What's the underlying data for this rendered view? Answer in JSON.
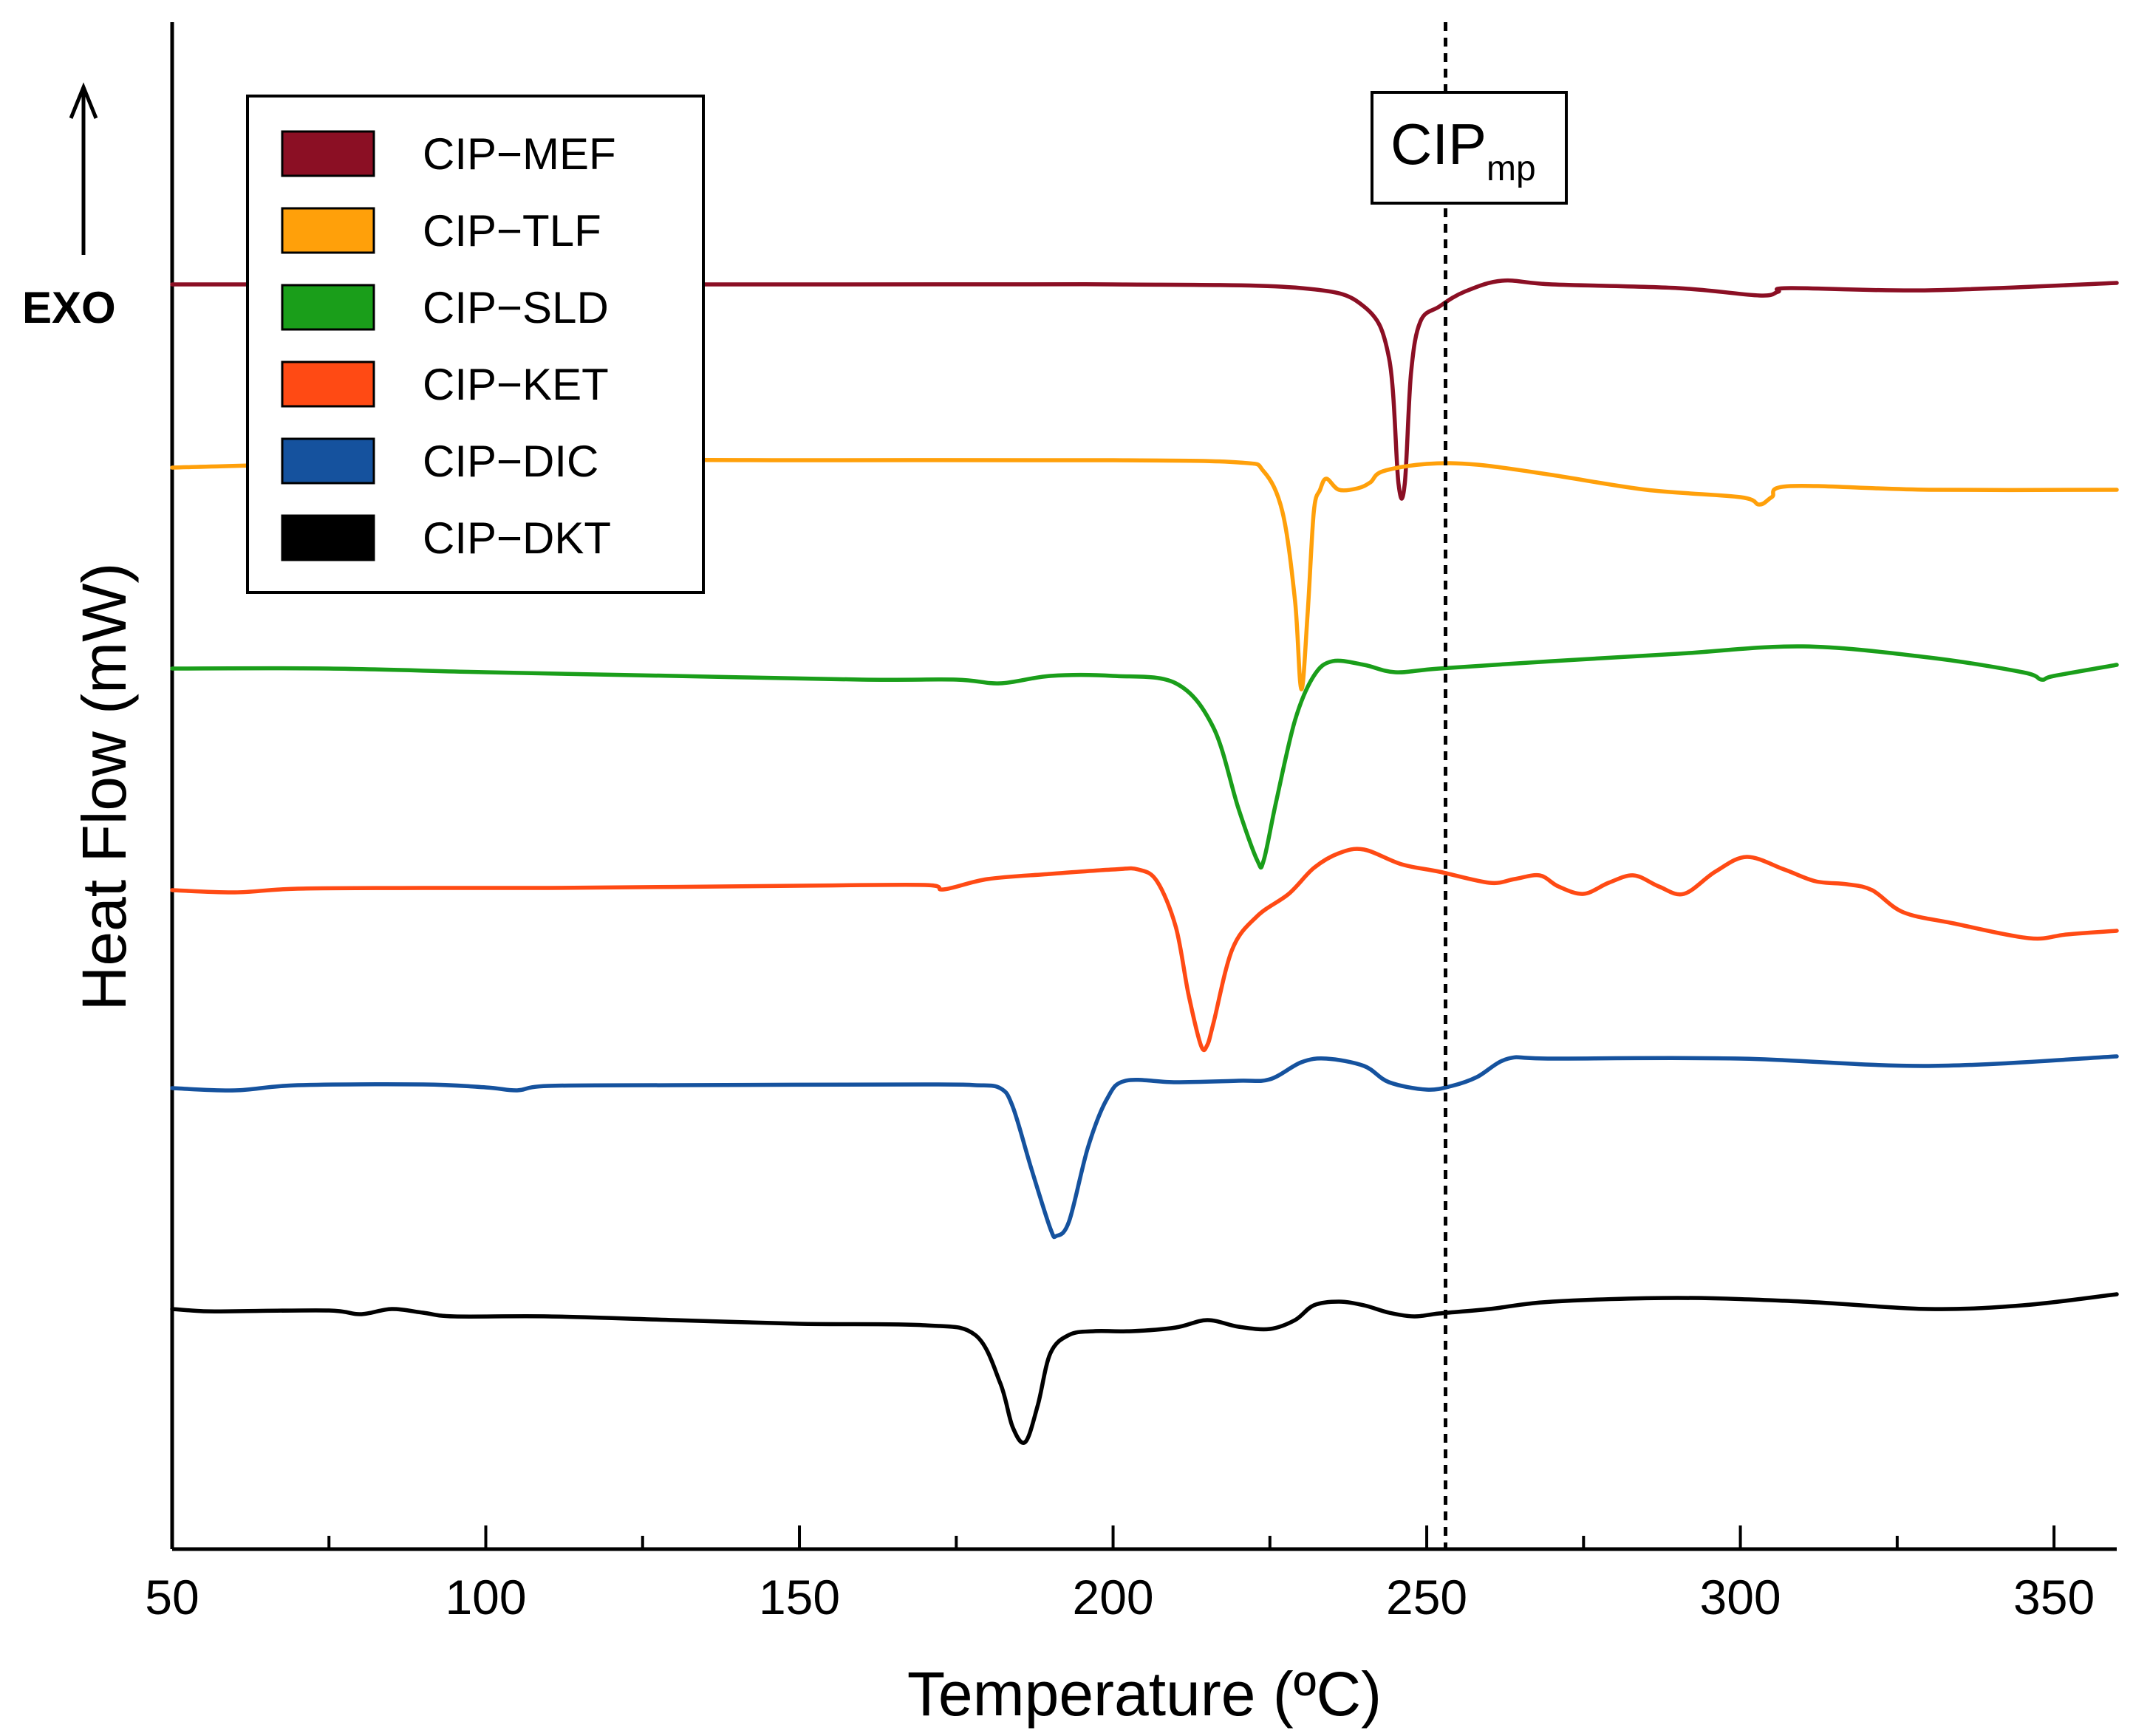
{
  "chart_data": {
    "type": "line",
    "title": "",
    "xlabel": "Temperature (ºC)",
    "ylabel": "Heat Flow (mW)",
    "xlim": [
      50,
      360
    ],
    "xticks": [
      50,
      100,
      150,
      200,
      250,
      300,
      350
    ],
    "exo_label": "EXO",
    "reference_line": {
      "x": 253,
      "label_main": "CIP",
      "label_sub": "mp"
    },
    "legend": {
      "position": "top-left"
    },
    "series": [
      {
        "name": "CIP−MEF",
        "color": "#8b0f24",
        "points": [
          [
            50,
            0
          ],
          [
            150,
            0
          ],
          [
            200,
            0
          ],
          [
            230,
            -0.5
          ],
          [
            240,
            -3
          ],
          [
            244,
            -10
          ],
          [
            245.5,
            -27
          ],
          [
            246.5,
            -27
          ],
          [
            247.5,
            -12
          ],
          [
            249,
            -5
          ],
          [
            252,
            -3
          ],
          [
            256,
            -1
          ],
          [
            262,
            0.5
          ],
          [
            270,
            0
          ],
          [
            290,
            -0.5
          ],
          [
            303,
            -1.5
          ],
          [
            306,
            -1
          ],
          [
            308,
            -0.5
          ],
          [
            330,
            -0.8
          ],
          [
            360,
            0.2
          ]
        ]
      },
      {
        "name": "CIP−TLF",
        "color": "#ffa00a",
        "points": [
          [
            50,
            0
          ],
          [
            100,
            1
          ],
          [
            150,
            1
          ],
          [
            200,
            1
          ],
          [
            220,
            0.7
          ],
          [
            224,
            -0.5
          ],
          [
            227,
            -6
          ],
          [
            229,
            -18
          ],
          [
            230,
            -30
          ],
          [
            231,
            -20
          ],
          [
            232,
            -6
          ],
          [
            233,
            -3
          ],
          [
            234,
            -1.5
          ],
          [
            236,
            -3
          ],
          [
            239,
            -2.8
          ],
          [
            241,
            -2
          ],
          [
            243,
            -0.5
          ],
          [
            250,
            0.5
          ],
          [
            258,
            0.4
          ],
          [
            270,
            -1
          ],
          [
            285,
            -3
          ],
          [
            300,
            -4
          ],
          [
            303,
            -5
          ],
          [
            305,
            -4
          ],
          [
            308,
            -2.5
          ],
          [
            330,
            -3
          ],
          [
            360,
            -3
          ]
        ]
      },
      {
        "name": "CIP−SLD",
        "color": "#1a9e1a",
        "points": [
          [
            50,
            0
          ],
          [
            75,
            0
          ],
          [
            100,
            -0.5
          ],
          [
            130,
            -1
          ],
          [
            160,
            -1.5
          ],
          [
            175,
            -1.5
          ],
          [
            182,
            -2
          ],
          [
            190,
            -1
          ],
          [
            200,
            -1
          ],
          [
            210,
            -2
          ],
          [
            216,
            -8
          ],
          [
            220,
            -19
          ],
          [
            223,
            -26
          ],
          [
            224,
            -26
          ],
          [
            226,
            -18
          ],
          [
            229,
            -7
          ],
          [
            232,
            -1
          ],
          [
            235,
            1
          ],
          [
            240,
            0.5
          ],
          [
            245,
            -0.5
          ],
          [
            252,
            0
          ],
          [
            270,
            1
          ],
          [
            290,
            2
          ],
          [
            310,
            3
          ],
          [
            330,
            1.5
          ],
          [
            345,
            -0.5
          ],
          [
            348,
            -1.5
          ],
          [
            350,
            -1
          ],
          [
            360,
            0.5
          ]
        ]
      },
      {
        "name": "CIP−KET",
        "color": "#ff4a14",
        "points": [
          [
            50,
            0
          ],
          [
            60,
            -0.3
          ],
          [
            70,
            0.2
          ],
          [
            90,
            0.3
          ],
          [
            110,
            0.3
          ],
          [
            150,
            0.6
          ],
          [
            170,
            0.7
          ],
          [
            173,
            0.1
          ],
          [
            180,
            1.5
          ],
          [
            190,
            2.2
          ],
          [
            200,
            2.8
          ],
          [
            204,
            2.8
          ],
          [
            207,
            1.2
          ],
          [
            210,
            -5
          ],
          [
            212,
            -14
          ],
          [
            214,
            -21
          ],
          [
            215,
            -21
          ],
          [
            216,
            -18
          ],
          [
            219,
            -8
          ],
          [
            223,
            -3.5
          ],
          [
            228,
            -0.5
          ],
          [
            232,
            3
          ],
          [
            236,
            5
          ],
          [
            240,
            5.5
          ],
          [
            246,
            3.5
          ],
          [
            252,
            2.5
          ],
          [
            260,
            1
          ],
          [
            264,
            1.5
          ],
          [
            268,
            2
          ],
          [
            271,
            0.5
          ],
          [
            275,
            -0.5
          ],
          [
            279,
            1
          ],
          [
            283,
            2
          ],
          [
            287,
            0.5
          ],
          [
            291,
            -0.5
          ],
          [
            296,
            2.5
          ],
          [
            301,
            4.5
          ],
          [
            307,
            2.8
          ],
          [
            312,
            1.2
          ],
          [
            317,
            0.8
          ],
          [
            321,
            0
          ],
          [
            326,
            -3
          ],
          [
            334,
            -4.5
          ],
          [
            346,
            -6.5
          ],
          [
            352,
            -6
          ],
          [
            360,
            -5.5
          ]
        ]
      },
      {
        "name": "CIP−DIC",
        "color": "#15529e",
        "points": [
          [
            50,
            0
          ],
          [
            60,
            -0.3
          ],
          [
            70,
            0.4
          ],
          [
            90,
            0.5
          ],
          [
            100,
            0.1
          ],
          [
            105,
            -0.3
          ],
          [
            110,
            0.3
          ],
          [
            130,
            0.4
          ],
          [
            170,
            0.5
          ],
          [
            178,
            0.4
          ],
          [
            182,
            0
          ],
          [
            184,
            -2.5
          ],
          [
            187,
            -11
          ],
          [
            190,
            -19
          ],
          [
            191,
            -20
          ],
          [
            193,
            -18
          ],
          [
            196,
            -8
          ],
          [
            199,
            -1.5
          ],
          [
            202,
            1
          ],
          [
            210,
            0.8
          ],
          [
            220,
            1
          ],
          [
            225,
            1.2
          ],
          [
            230,
            3.5
          ],
          [
            234,
            4
          ],
          [
            240,
            3
          ],
          [
            244,
            0.8
          ],
          [
            250,
            -0.2
          ],
          [
            254,
            0.3
          ],
          [
            258,
            1.5
          ],
          [
            263,
            4
          ],
          [
            270,
            4
          ],
          [
            300,
            4
          ],
          [
            330,
            3
          ],
          [
            360,
            4.3
          ]
        ]
      },
      {
        "name": "CIP−DKT",
        "color": "#000000",
        "points": [
          [
            50,
            0
          ],
          [
            55,
            -0.3
          ],
          [
            60,
            -0.3
          ],
          [
            75,
            -0.2
          ],
          [
            80,
            -0.7
          ],
          [
            85,
            0
          ],
          [
            90,
            -0.5
          ],
          [
            95,
            -1
          ],
          [
            110,
            -1
          ],
          [
            130,
            -1.5
          ],
          [
            150,
            -2
          ],
          [
            170,
            -2.2
          ],
          [
            178,
            -3.5
          ],
          [
            182,
            -10
          ],
          [
            184,
            -16
          ],
          [
            186,
            -18
          ],
          [
            188,
            -13
          ],
          [
            190,
            -6
          ],
          [
            193,
            -3.5
          ],
          [
            197,
            -3
          ],
          [
            203,
            -3
          ],
          [
            210,
            -2.5
          ],
          [
            215,
            -1.5
          ],
          [
            220,
            -2.4
          ],
          [
            225,
            -2.7
          ],
          [
            229,
            -1.5
          ],
          [
            232,
            0.5
          ],
          [
            236,
            1
          ],
          [
            240,
            0.5
          ],
          [
            244,
            -0.5
          ],
          [
            248,
            -1
          ],
          [
            252,
            -0.6
          ],
          [
            260,
            0
          ],
          [
            270,
            1
          ],
          [
            290,
            1.5
          ],
          [
            310,
            1
          ],
          [
            330,
            0
          ],
          [
            345,
            0.5
          ],
          [
            360,
            2
          ]
        ]
      }
    ]
  }
}
